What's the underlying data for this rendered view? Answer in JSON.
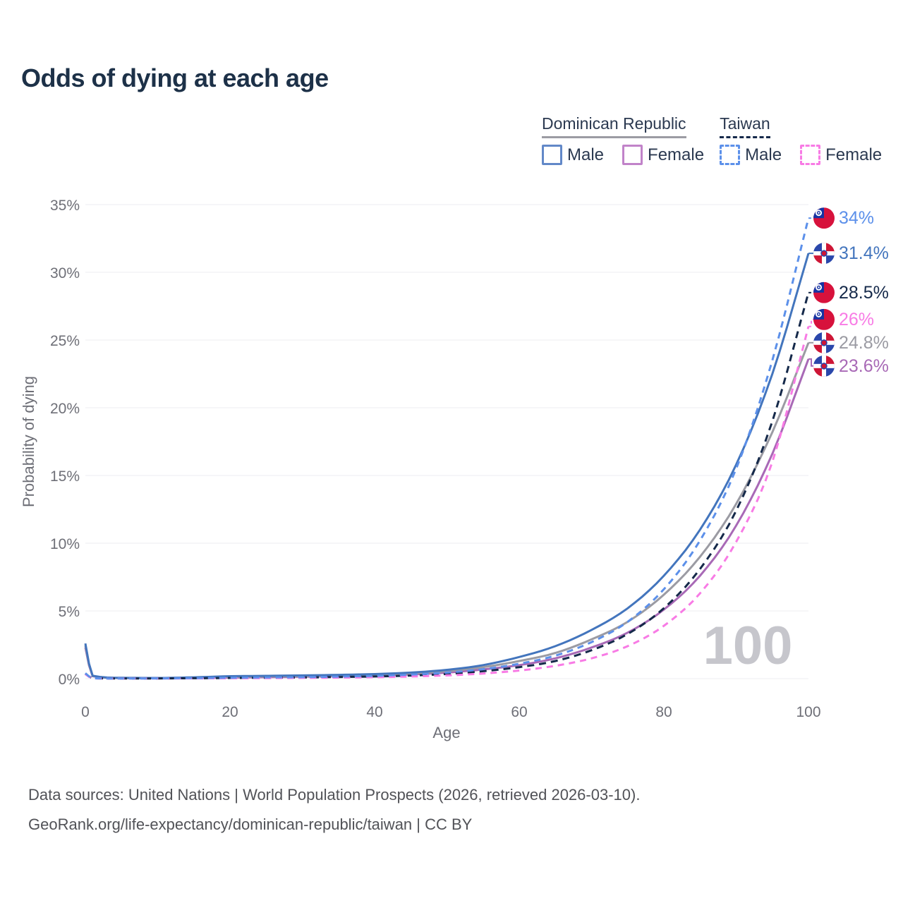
{
  "title": "Odds of dying at each age",
  "legend": {
    "groups": [
      {
        "title": "Dominican Republic",
        "line_style": "solid",
        "line_color": "#9b9ba3",
        "items": [
          {
            "label": "Male",
            "color": "#6288c8",
            "style": "solid"
          },
          {
            "label": "Female",
            "color": "#c183c9",
            "style": "solid"
          }
        ]
      },
      {
        "title": "Taiwan",
        "line_style": "dashed",
        "line_color": "#15294a",
        "items": [
          {
            "label": "Male",
            "color": "#5c90ea",
            "style": "dashed"
          },
          {
            "label": "Female",
            "color": "#f87be5",
            "style": "dashed"
          }
        ]
      }
    ]
  },
  "chart_data": {
    "type": "line",
    "title": "Odds of dying at each age",
    "xlabel": "Age",
    "ylabel": "Probability of dying",
    "xlim": [
      0,
      100
    ],
    "ylim": [
      0,
      35
    ],
    "x_ticks": [
      0,
      20,
      40,
      60,
      80,
      100
    ],
    "y_ticks": [
      0,
      5,
      10,
      15,
      20,
      25,
      30,
      35
    ],
    "y_tick_suffix": "%",
    "grid": "horizontal-only",
    "legend_position": "top-right",
    "watermark": "100",
    "ages": [
      0,
      1,
      5,
      10,
      15,
      20,
      25,
      30,
      35,
      40,
      45,
      50,
      55,
      60,
      65,
      70,
      75,
      80,
      85,
      90,
      95,
      100
    ],
    "series": [
      {
        "name": "Dominican Republic Female",
        "country": "Dominican Republic",
        "sex": "Female",
        "flag": "dominican-republic",
        "color": "#a869b6",
        "dash": "solid",
        "end_label": "23.6%",
        "values": [
          2.3,
          0.18,
          0.045,
          0.035,
          0.06,
          0.08,
          0.11,
          0.14,
          0.18,
          0.23,
          0.31,
          0.45,
          0.68,
          1.0,
          1.5,
          2.3,
          3.4,
          5.1,
          7.6,
          11.3,
          16.6,
          23.6
        ]
      },
      {
        "name": "Dominican Republic Overall",
        "country": "Dominican Republic",
        "sex": "All",
        "flag": "dominican-republic",
        "color": "#9b9ba3",
        "dash": "solid",
        "end_label": "24.8%",
        "values": [
          2.45,
          0.2,
          0.05,
          0.04,
          0.08,
          0.13,
          0.16,
          0.19,
          0.23,
          0.28,
          0.38,
          0.55,
          0.85,
          1.3,
          1.9,
          2.9,
          4.2,
          6.2,
          9.0,
          12.9,
          18.2,
          24.8
        ]
      },
      {
        "name": "Dominican Republic Male",
        "country": "Dominican Republic",
        "sex": "Male",
        "flag": "dominican-republic",
        "color": "#4375bd",
        "dash": "solid",
        "end_label": "31.4%",
        "values": [
          2.6,
          0.22,
          0.06,
          0.05,
          0.1,
          0.18,
          0.21,
          0.24,
          0.28,
          0.34,
          0.45,
          0.65,
          1.0,
          1.6,
          2.4,
          3.6,
          5.2,
          7.6,
          11.0,
          15.8,
          22.5,
          31.4
        ]
      },
      {
        "name": "Taiwan Overall",
        "country": "Taiwan",
        "sex": "All",
        "flag": "taiwan",
        "color": "#15294a",
        "dash": "dashed",
        "end_label": "28.5%",
        "values": [
          0.37,
          0.027,
          0.013,
          0.017,
          0.03,
          0.05,
          0.07,
          0.09,
          0.12,
          0.16,
          0.23,
          0.35,
          0.55,
          0.85,
          1.3,
          2.1,
          3.3,
          5.2,
          8.1,
          12.4,
          19.0,
          28.5
        ]
      },
      {
        "name": "Taiwan Female",
        "country": "Taiwan",
        "sex": "Female",
        "flag": "taiwan",
        "color": "#f87be5",
        "dash": "dashed",
        "end_label": "26%",
        "values": [
          0.33,
          0.024,
          0.011,
          0.014,
          0.02,
          0.03,
          0.04,
          0.055,
          0.08,
          0.11,
          0.16,
          0.24,
          0.38,
          0.6,
          0.95,
          1.5,
          2.4,
          3.9,
          6.3,
          10.1,
          16.0,
          26.0
        ]
      },
      {
        "name": "Taiwan Male",
        "country": "Taiwan",
        "sex": "Male",
        "flag": "taiwan",
        "color": "#5c90ea",
        "dash": "dashed",
        "end_label": "34%",
        "values": [
          0.4,
          0.03,
          0.015,
          0.02,
          0.04,
          0.07,
          0.09,
          0.11,
          0.15,
          0.21,
          0.3,
          0.45,
          0.7,
          1.1,
          1.7,
          2.7,
          4.2,
          6.6,
          10.2,
          15.5,
          23.5,
          34.0
        ]
      }
    ]
  },
  "footer": {
    "line1": "Data sources: United Nations | World Population Prospects (2026, retrieved 2026-03-10).",
    "line2": "GeoRank.org/life-expectancy/dominican-republic/taiwan | CC BY"
  }
}
